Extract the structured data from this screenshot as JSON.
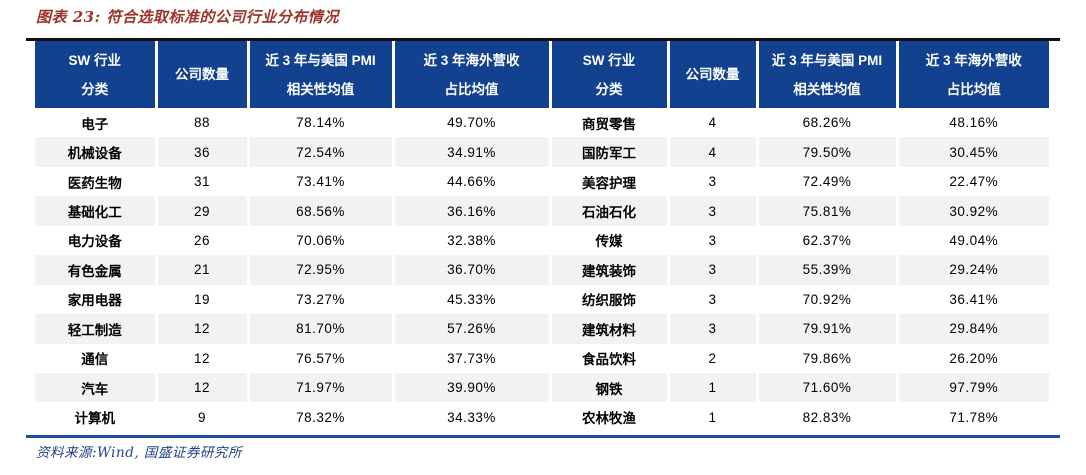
{
  "title": "图表 23: 符合选取标准的公司行业分布情况",
  "source": "资料来源:Wind, 国盛证券研究所",
  "colors": {
    "header_bg": "#12418F",
    "header_text": "#FFFFFF",
    "row_alt_bg": "#F2F2F2",
    "body_text": "#000000",
    "title_text": "#9C3328",
    "top_rule": "#111111",
    "bottom_rule": "#1F4E9F",
    "source_text": "#24418A"
  },
  "table": {
    "header": [
      {
        "line1": "SW 行业",
        "line2": "分类"
      },
      {
        "line1": "公司数量",
        "line2": ""
      },
      {
        "line1": "近 3 年与美国 PMI",
        "line2": "相关性均值"
      },
      {
        "line1": "近 3 年海外营收",
        "line2": "占比均值"
      },
      {
        "line1": "SW 行业",
        "line2": "分类"
      },
      {
        "line1": "公司数量",
        "line2": ""
      },
      {
        "line1": "近 3 年与美国 PMI",
        "line2": "相关性均值"
      },
      {
        "line1": "近 3 年海外营收",
        "line2": "占比均值"
      }
    ],
    "rows": [
      [
        "电子",
        "88",
        "78.14%",
        "49.70%",
        "商贸零售",
        "4",
        "68.26%",
        "48.16%"
      ],
      [
        "机械设备",
        "36",
        "72.54%",
        "34.91%",
        "国防军工",
        "4",
        "79.50%",
        "30.45%"
      ],
      [
        "医药生物",
        "31",
        "73.41%",
        "44.66%",
        "美容护理",
        "3",
        "72.49%",
        "22.47%"
      ],
      [
        "基础化工",
        "29",
        "68.56%",
        "36.16%",
        "石油石化",
        "3",
        "75.81%",
        "30.92%"
      ],
      [
        "电力设备",
        "26",
        "70.06%",
        "32.38%",
        "传媒",
        "3",
        "62.37%",
        "49.04%"
      ],
      [
        "有色金属",
        "21",
        "72.95%",
        "36.70%",
        "建筑装饰",
        "3",
        "55.39%",
        "29.24%"
      ],
      [
        "家用电器",
        "19",
        "73.27%",
        "45.33%",
        "纺织服饰",
        "3",
        "70.92%",
        "36.41%"
      ],
      [
        "轻工制造",
        "12",
        "81.70%",
        "57.26%",
        "建筑材料",
        "3",
        "79.91%",
        "29.84%"
      ],
      [
        "通信",
        "12",
        "76.57%",
        "37.73%",
        "食品饮料",
        "2",
        "79.86%",
        "26.20%"
      ],
      [
        "汽车",
        "12",
        "71.97%",
        "39.90%",
        "钢铁",
        "1",
        "71.60%",
        "97.79%"
      ],
      [
        "计算机",
        "9",
        "78.32%",
        "34.33%",
        "农林牧渔",
        "1",
        "82.83%",
        "71.78%"
      ]
    ]
  },
  "chart_data": {
    "type": "table",
    "title": "图表 23: 符合选取标准的公司行业分布情况",
    "columns": [
      "SW 行业分类",
      "公司数量",
      "近 3 年与美国 PMI 相关性均值",
      "近 3 年海外营收占比均值"
    ],
    "rows": [
      [
        "电子",
        88,
        "78.14%",
        "49.70%"
      ],
      [
        "机械设备",
        36,
        "72.54%",
        "34.91%"
      ],
      [
        "医药生物",
        31,
        "73.41%",
        "44.66%"
      ],
      [
        "基础化工",
        29,
        "68.56%",
        "36.16%"
      ],
      [
        "电力设备",
        26,
        "70.06%",
        "32.38%"
      ],
      [
        "有色金属",
        21,
        "72.95%",
        "36.70%"
      ],
      [
        "家用电器",
        19,
        "73.27%",
        "45.33%"
      ],
      [
        "轻工制造",
        12,
        "81.70%",
        "57.26%"
      ],
      [
        "通信",
        12,
        "76.57%",
        "37.73%"
      ],
      [
        "汽车",
        12,
        "71.97%",
        "39.90%"
      ],
      [
        "计算机",
        9,
        "78.32%",
        "34.33%"
      ],
      [
        "商贸零售",
        4,
        "68.26%",
        "48.16%"
      ],
      [
        "国防军工",
        4,
        "79.50%",
        "30.45%"
      ],
      [
        "美容护理",
        3,
        "72.49%",
        "22.47%"
      ],
      [
        "石油石化",
        3,
        "75.81%",
        "30.92%"
      ],
      [
        "传媒",
        3,
        "62.37%",
        "49.04%"
      ],
      [
        "建筑装饰",
        3,
        "55.39%",
        "29.24%"
      ],
      [
        "纺织服饰",
        3,
        "70.92%",
        "36.41%"
      ],
      [
        "建筑材料",
        3,
        "79.91%",
        "29.84%"
      ],
      [
        "食品饮料",
        2,
        "79.86%",
        "26.20%"
      ],
      [
        "钢铁",
        1,
        "71.60%",
        "97.79%"
      ],
      [
        "农林牧渔",
        1,
        "82.83%",
        "71.78%"
      ]
    ]
  }
}
